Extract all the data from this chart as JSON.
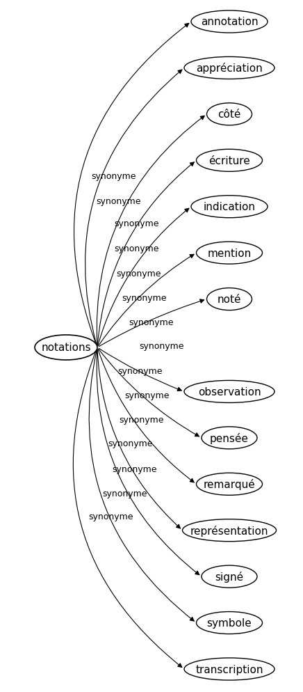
{
  "center_node": "notations",
  "synonyms": [
    "annotation",
    "appréciation",
    "côté",
    "écriture",
    "indication",
    "mention",
    "noté",
    "",
    "observation",
    "pensée",
    "remarqué",
    "représentation",
    "signé",
    "symbole",
    "transcription"
  ],
  "edge_label": "synonyme",
  "bg_color": "#ffffff",
  "node_color": "#ffffff",
  "edge_color": "#000000",
  "text_color": "#000000",
  "font_size_center": 11,
  "font_size_node": 11,
  "font_size_edge": 9
}
